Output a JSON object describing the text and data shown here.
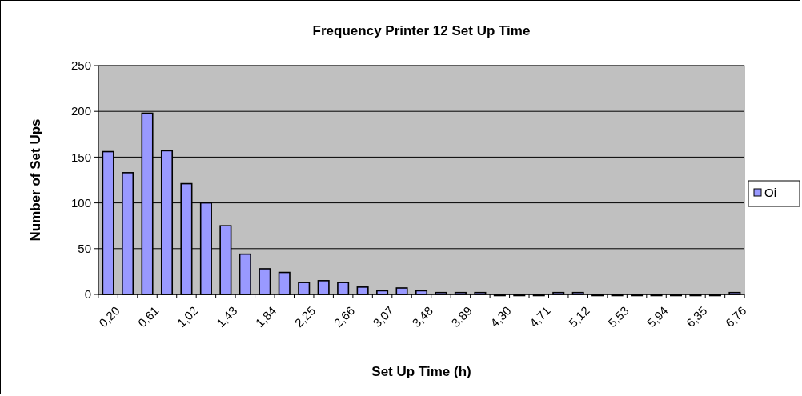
{
  "chart_data": {
    "type": "bar",
    "title": "Frequency Printer 12 Set Up Time",
    "xlabel": "Set Up Time (h)",
    "ylabel": "Number of Set Ups",
    "categories": [
      "0,20",
      null,
      "0,61",
      null,
      "1,02",
      null,
      "1,43",
      null,
      "1,84",
      null,
      "2,25",
      null,
      "2,66",
      null,
      "3,07",
      null,
      "3,48",
      null,
      "3,89",
      null,
      "4,30",
      null,
      "4,71",
      null,
      "5,12",
      null,
      "5,53",
      null,
      "5,94",
      null,
      "6,35",
      null,
      "6,76"
    ],
    "series": [
      {
        "name": "Oi",
        "color": "#9999ff",
        "values": [
          156,
          133,
          198,
          157,
          121,
          100,
          75,
          44,
          28,
          24,
          13,
          15,
          13,
          8,
          4,
          7,
          4,
          2,
          2,
          2,
          0,
          0,
          0,
          2,
          2,
          0,
          0,
          0,
          0,
          0,
          0,
          0,
          2
        ]
      }
    ],
    "ylim": [
      0,
      250
    ],
    "yticks": [
      0,
      50,
      100,
      150,
      200,
      250
    ],
    "grid": "y",
    "legend": "right"
  }
}
